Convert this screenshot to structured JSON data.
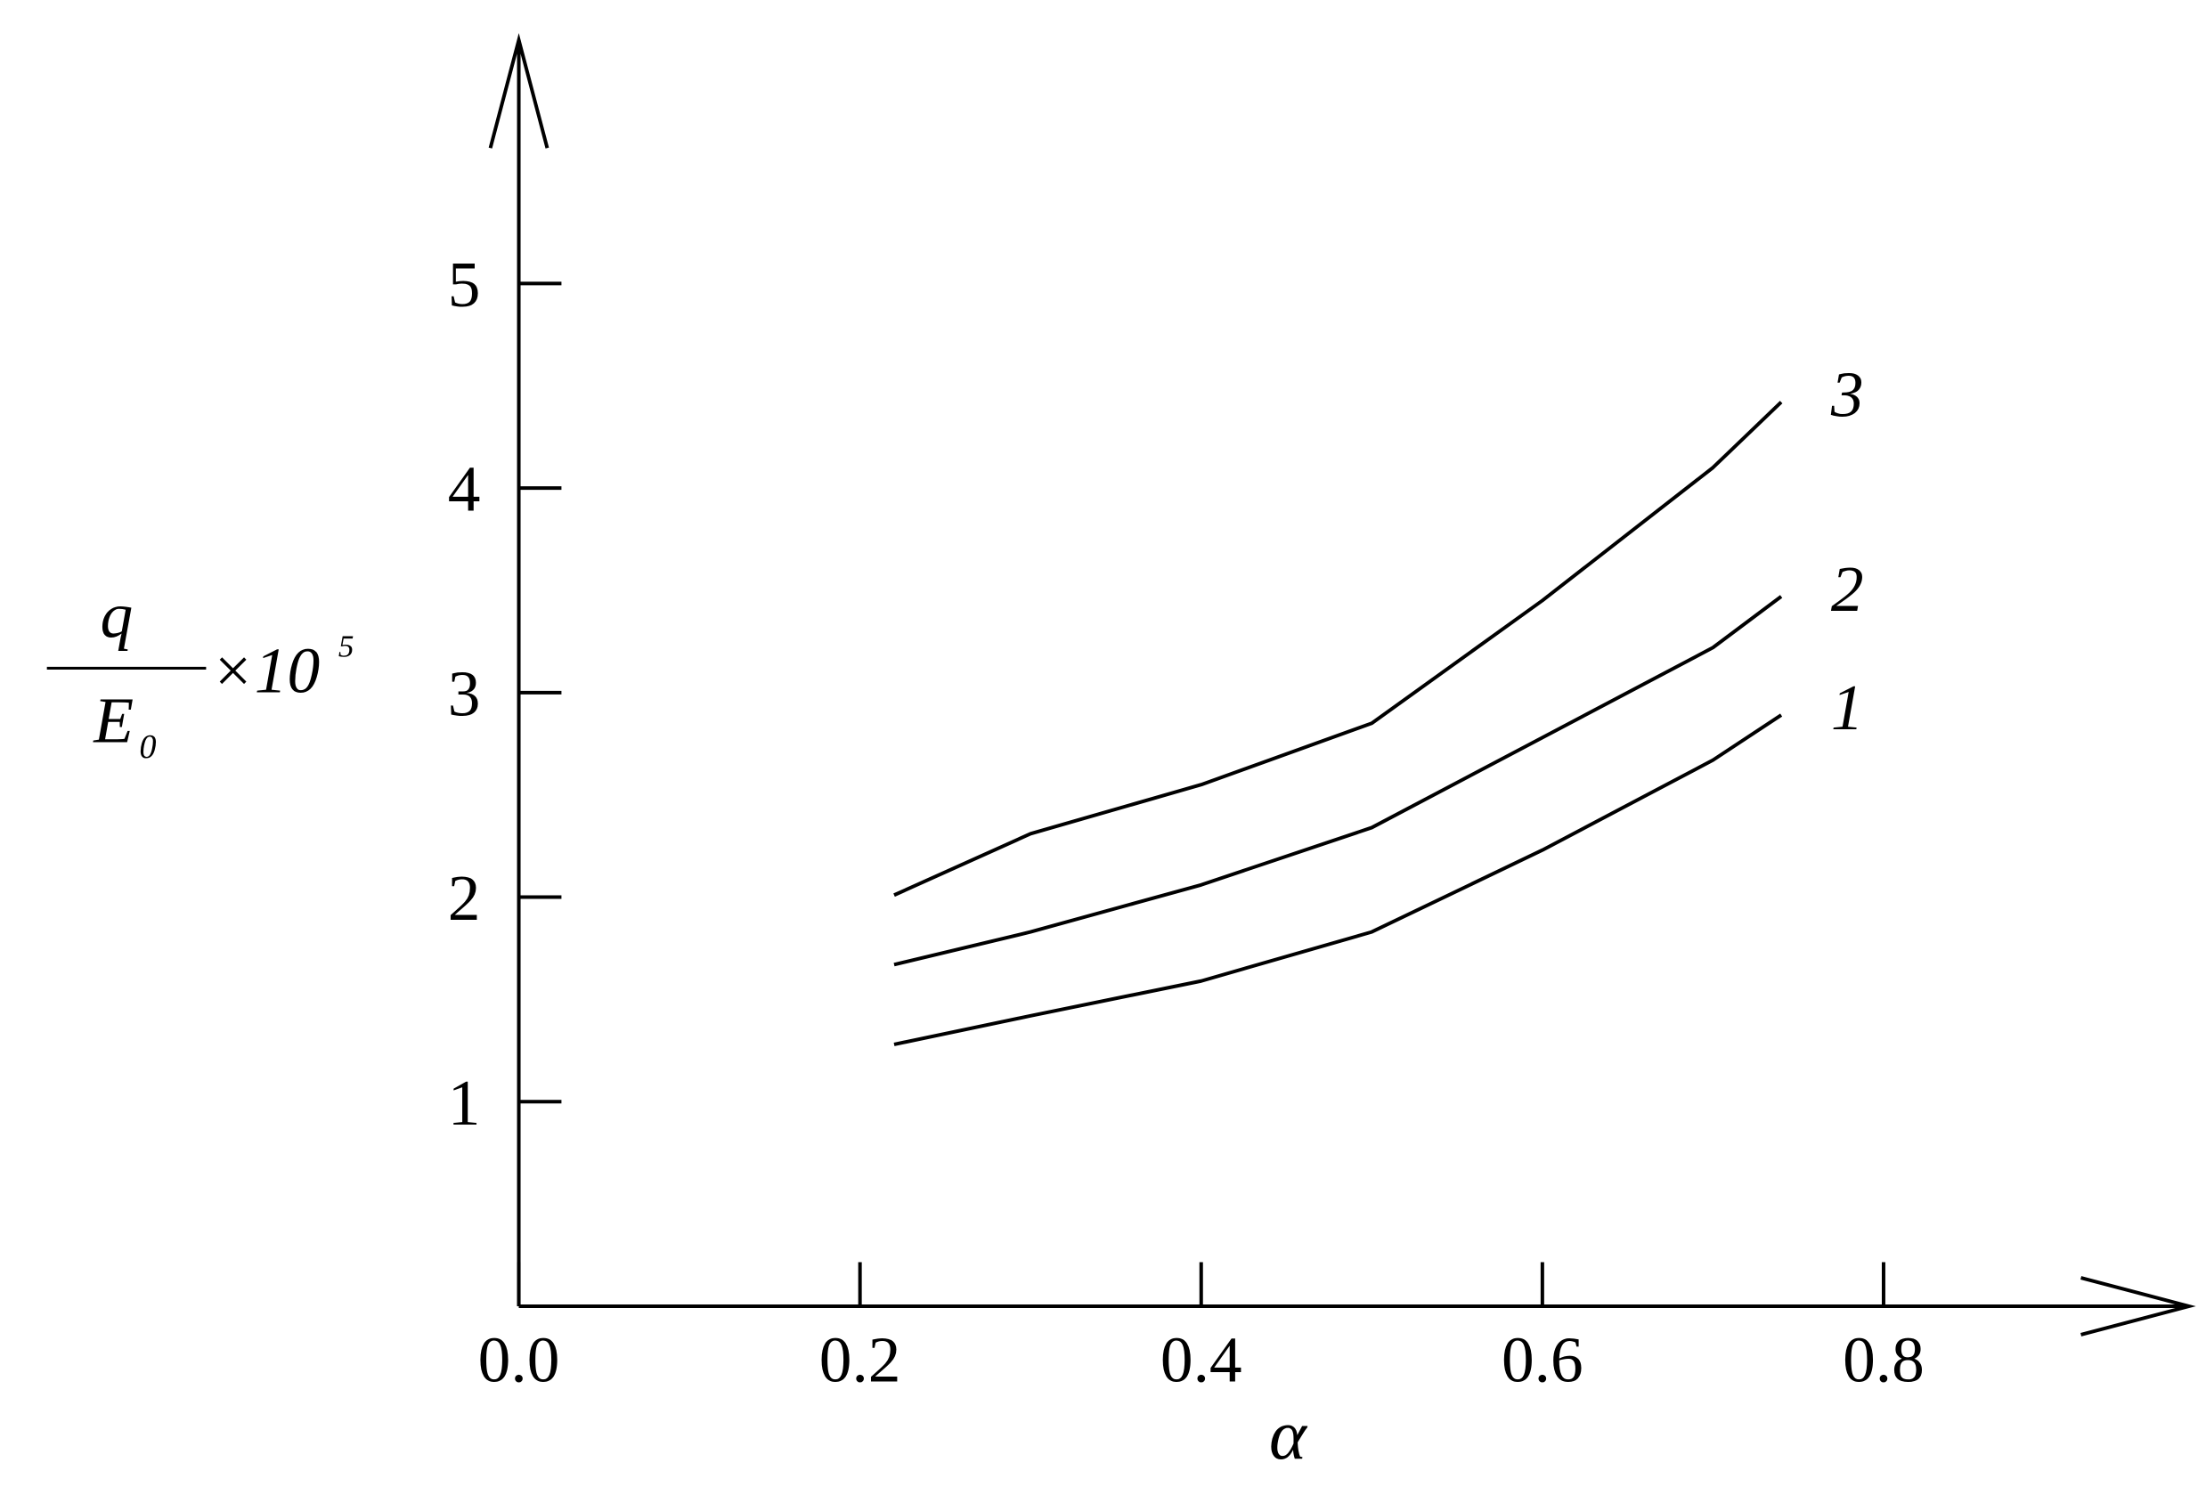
{
  "chart_data": {
    "type": "line",
    "xlabel": "α",
    "ylabel": {
      "numerator": "q",
      "denominator": "E",
      "denominator_subscript": "0",
      "factor": "×10",
      "exponent": "5"
    },
    "x": [
      0.22,
      0.3,
      0.4,
      0.5,
      0.6,
      0.7,
      0.74
    ],
    "series": [
      {
        "name": "1",
        "color": "#000000",
        "values": [
          1.28,
          1.42,
          1.59,
          1.83,
          2.23,
          2.67,
          2.89
        ]
      },
      {
        "name": "2",
        "color": "#000000",
        "values": [
          1.67,
          1.83,
          2.06,
          2.34,
          2.78,
          3.22,
          3.47
        ]
      },
      {
        "name": "3",
        "color": "#000000",
        "values": [
          2.01,
          2.31,
          2.55,
          2.85,
          3.45,
          4.1,
          4.42
        ]
      }
    ],
    "xlim": [
      0,
      0.979
    ],
    "ylim": [
      0,
      6.19
    ],
    "xticks": [
      {
        "value": 0,
        "label": "0.0"
      },
      0.2,
      0.4,
      0.6,
      0.8
    ],
    "yticks": [
      1,
      2,
      3,
      4,
      5
    ],
    "grid": false
  }
}
